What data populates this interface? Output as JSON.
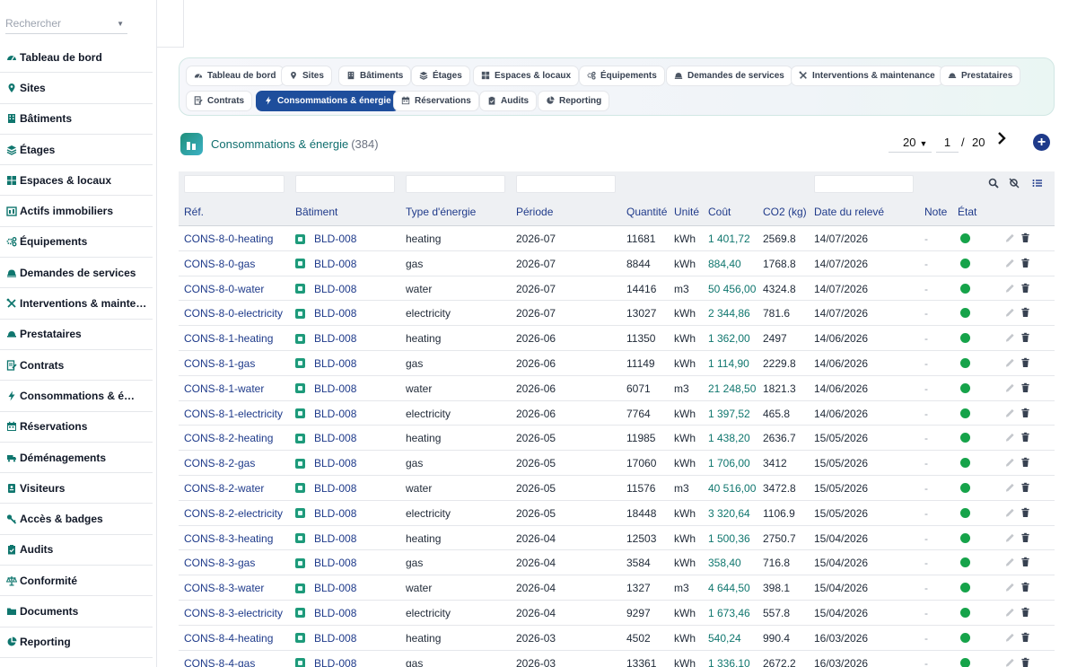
{
  "search": {
    "placeholder": "Rechercher"
  },
  "sidebar": {
    "items": [
      {
        "label": "Tableau de bord",
        "icon": "dashboard-icon"
      },
      {
        "label": "Sites",
        "icon": "map-pin-icon"
      },
      {
        "label": "Bâtiments",
        "icon": "building-icon"
      },
      {
        "label": "Étages",
        "icon": "layers-icon"
      },
      {
        "label": "Espaces & locaux",
        "icon": "grid-icon"
      },
      {
        "label": "Actifs immobiliers",
        "icon": "asset-icon"
      },
      {
        "label": "Équipements",
        "icon": "gears-icon"
      },
      {
        "label": "Demandes de services",
        "icon": "bell-icon"
      },
      {
        "label": "Interventions & mainten…",
        "icon": "tools-icon"
      },
      {
        "label": "Prestataires",
        "icon": "helmet-icon"
      },
      {
        "label": "Contrats",
        "icon": "contract-icon"
      },
      {
        "label": "Consommations & é…",
        "icon": "bolt-icon"
      },
      {
        "label": "Réservations",
        "icon": "calendar-icon"
      },
      {
        "label": "Déménagements",
        "icon": "truck-icon"
      },
      {
        "label": "Visiteurs",
        "icon": "id-card-icon"
      },
      {
        "label": "Accès & badges",
        "icon": "key-icon"
      },
      {
        "label": "Audits",
        "icon": "clipboard-icon"
      },
      {
        "label": "Conformité",
        "icon": "scale-icon"
      },
      {
        "label": "Documents",
        "icon": "folder-icon"
      },
      {
        "label": "Reporting",
        "icon": "pie-icon"
      }
    ]
  },
  "tabs": [
    {
      "label": "Tableau de bord",
      "icon": "dashboard-icon"
    },
    {
      "label": "Sites",
      "icon": "map-pin-icon"
    },
    {
      "label": "Bâtiments",
      "icon": "building-icon"
    },
    {
      "label": "Étages",
      "icon": "layers-icon"
    },
    {
      "label": "Espaces & locaux",
      "icon": "grid-icon"
    },
    {
      "label": "Équipements",
      "icon": "gears-icon"
    },
    {
      "label": "Demandes de services",
      "icon": "bell-icon"
    },
    {
      "label": "Interventions & maintenance",
      "icon": "tools-icon"
    },
    {
      "label": "Prestataires",
      "icon": "helmet-icon"
    },
    {
      "label": "Contrats",
      "icon": "contract-icon"
    },
    {
      "label": "Consommations & énergie",
      "icon": "bolt-icon",
      "active": true
    },
    {
      "label": "Réservations",
      "icon": "calendar-icon"
    },
    {
      "label": "Audits",
      "icon": "clipboard-icon"
    },
    {
      "label": "Reporting",
      "icon": "pie-icon"
    }
  ],
  "section": {
    "title": "Consommations & énergie",
    "count": "(384)"
  },
  "pager": {
    "page_size": "20",
    "current": "1",
    "separator": "/",
    "total": "20",
    "next": "›",
    "add": "+"
  },
  "table": {
    "columns": [
      "Réf.",
      "Bâtiment",
      "Type d'énergie",
      "Période",
      "Quantité",
      "Unité",
      "Coût",
      "CO2 (kg)",
      "Date du relevé",
      "Note",
      "État"
    ],
    "rows": [
      [
        "CONS-8-0-heating",
        "BLD-008",
        "heating",
        "2026-07",
        "11681",
        "kWh",
        "1 401,72",
        "2569.8",
        "14/07/2026",
        "-"
      ],
      [
        "CONS-8-0-gas",
        "BLD-008",
        "gas",
        "2026-07",
        "8844",
        "kWh",
        "884,40",
        "1768.8",
        "14/07/2026",
        "-"
      ],
      [
        "CONS-8-0-water",
        "BLD-008",
        "water",
        "2026-07",
        "14416",
        "m3",
        "50 456,00",
        "4324.8",
        "14/07/2026",
        "-"
      ],
      [
        "CONS-8-0-electricity",
        "BLD-008",
        "electricity",
        "2026-07",
        "13027",
        "kWh",
        "2 344,86",
        "781.6",
        "14/07/2026",
        "-"
      ],
      [
        "CONS-8-1-heating",
        "BLD-008",
        "heating",
        "2026-06",
        "11350",
        "kWh",
        "1 362,00",
        "2497",
        "14/06/2026",
        "-"
      ],
      [
        "CONS-8-1-gas",
        "BLD-008",
        "gas",
        "2026-06",
        "11149",
        "kWh",
        "1 114,90",
        "2229.8",
        "14/06/2026",
        "-"
      ],
      [
        "CONS-8-1-water",
        "BLD-008",
        "water",
        "2026-06",
        "6071",
        "m3",
        "21 248,50",
        "1821.3",
        "14/06/2026",
        "-"
      ],
      [
        "CONS-8-1-electricity",
        "BLD-008",
        "electricity",
        "2026-06",
        "7764",
        "kWh",
        "1 397,52",
        "465.8",
        "14/06/2026",
        "-"
      ],
      [
        "CONS-8-2-heating",
        "BLD-008",
        "heating",
        "2026-05",
        "11985",
        "kWh",
        "1 438,20",
        "2636.7",
        "15/05/2026",
        "-"
      ],
      [
        "CONS-8-2-gas",
        "BLD-008",
        "gas",
        "2026-05",
        "17060",
        "kWh",
        "1 706,00",
        "3412",
        "15/05/2026",
        "-"
      ],
      [
        "CONS-8-2-water",
        "BLD-008",
        "water",
        "2026-05",
        "11576",
        "m3",
        "40 516,00",
        "3472.8",
        "15/05/2026",
        "-"
      ],
      [
        "CONS-8-2-electricity",
        "BLD-008",
        "electricity",
        "2026-05",
        "18448",
        "kWh",
        "3 320,64",
        "1106.9",
        "15/05/2026",
        "-"
      ],
      [
        "CONS-8-3-heating",
        "BLD-008",
        "heating",
        "2026-04",
        "12503",
        "kWh",
        "1 500,36",
        "2750.7",
        "15/04/2026",
        "-"
      ],
      [
        "CONS-8-3-gas",
        "BLD-008",
        "gas",
        "2026-04",
        "3584",
        "kWh",
        "358,40",
        "716.8",
        "15/04/2026",
        "-"
      ],
      [
        "CONS-8-3-water",
        "BLD-008",
        "water",
        "2026-04",
        "1327",
        "m3",
        "4 644,50",
        "398.1",
        "15/04/2026",
        "-"
      ],
      [
        "CONS-8-3-electricity",
        "BLD-008",
        "electricity",
        "2026-04",
        "9297",
        "kWh",
        "1 673,46",
        "557.8",
        "15/04/2026",
        "-"
      ],
      [
        "CONS-8-4-heating",
        "BLD-008",
        "heating",
        "2026-03",
        "4502",
        "kWh",
        "540,24",
        "990.4",
        "16/03/2026",
        "-"
      ],
      [
        "CONS-8-4-gas",
        "BLD-008",
        "gas",
        "2026-03",
        "13361",
        "kWh",
        "1 336,10",
        "2672.2",
        "16/03/2026",
        "-"
      ]
    ]
  },
  "colors": {
    "accent": "#1e4e9c",
    "status_ok": "#16a34a",
    "teal": "#0f766e"
  }
}
